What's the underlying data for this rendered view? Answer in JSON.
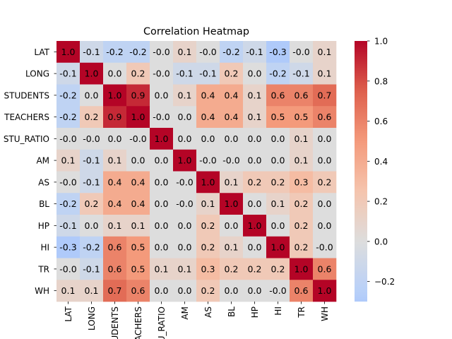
{
  "chart_data": {
    "type": "heatmap",
    "title": "Correlation Heatmap",
    "row_labels": [
      "LAT",
      "LONG",
      "STUDENTS",
      "TEACHERS",
      "STU_RATIO",
      "AM",
      "AS",
      "BL",
      "HP",
      "HI",
      "TR",
      "WH"
    ],
    "col_labels": [
      "LAT",
      "LONG",
      "STUDENTS",
      "TEACHERS",
      "STU_RATIO",
      "AM",
      "AS",
      "BL",
      "HP",
      "HI",
      "TR",
      "WH"
    ],
    "cell_labels": [
      [
        "1.0",
        "-0.1",
        "-0.2",
        "-0.2",
        "-0.0",
        "0.1",
        "-0.0",
        "-0.2",
        "-0.1",
        "-0.3",
        "-0.0",
        "0.1"
      ],
      [
        "-0.1",
        "1.0",
        "0.0",
        "0.2",
        "-0.0",
        "-0.1",
        "-0.1",
        "0.2",
        "0.0",
        "-0.2",
        "-0.1",
        "0.1"
      ],
      [
        "-0.2",
        "0.0",
        "1.0",
        "0.9",
        "0.0",
        "0.1",
        "0.4",
        "0.4",
        "0.1",
        "0.6",
        "0.6",
        "0.7"
      ],
      [
        "-0.2",
        "0.2",
        "0.9",
        "1.0",
        "-0.0",
        "0.0",
        "0.4",
        "0.4",
        "0.1",
        "0.5",
        "0.5",
        "0.6"
      ],
      [
        "-0.0",
        "-0.0",
        "0.0",
        "-0.0",
        "1.0",
        "0.0",
        "0.0",
        "0.0",
        "0.0",
        "0.0",
        "0.1",
        "0.0"
      ],
      [
        "0.1",
        "-0.1",
        "0.1",
        "0.0",
        "0.0",
        "1.0",
        "-0.0",
        "-0.0",
        "0.0",
        "0.0",
        "0.1",
        "0.0"
      ],
      [
        "-0.0",
        "-0.1",
        "0.4",
        "0.4",
        "0.0",
        "-0.0",
        "1.0",
        "0.1",
        "0.2",
        "0.2",
        "0.3",
        "0.2"
      ],
      [
        "-0.2",
        "0.2",
        "0.4",
        "0.4",
        "0.0",
        "-0.0",
        "0.1",
        "1.0",
        "0.0",
        "0.1",
        "0.2",
        "0.0"
      ],
      [
        "-0.1",
        "0.0",
        "0.1",
        "0.1",
        "0.0",
        "0.0",
        "0.2",
        "0.0",
        "1.0",
        "0.0",
        "0.2",
        "0.0"
      ],
      [
        "-0.3",
        "-0.2",
        "0.6",
        "0.5",
        "0.0",
        "0.0",
        "0.2",
        "0.1",
        "0.0",
        "1.0",
        "0.2",
        "-0.0"
      ],
      [
        "-0.0",
        "-0.1",
        "0.6",
        "0.5",
        "0.1",
        "0.1",
        "0.3",
        "0.2",
        "0.2",
        "0.2",
        "1.0",
        "0.6"
      ],
      [
        "0.1",
        "0.1",
        "0.7",
        "0.6",
        "0.0",
        "0.0",
        "0.2",
        "0.0",
        "0.0",
        "-0.0",
        "0.6",
        "1.0"
      ]
    ],
    "colormap": "coolwarm",
    "center": 0,
    "vmin": -0.3,
    "vmax": 1.0,
    "colorbar_ticks": [
      1.0,
      0.8,
      0.6,
      0.4,
      0.2,
      0.0,
      -0.2
    ],
    "colorbar_tick_labels": [
      "1.0",
      "0.8",
      "0.6",
      "0.4",
      "0.2",
      "0.0",
      "−0.2"
    ],
    "colors": {
      "low": "#3b4cc0",
      "mid": "#dddddd",
      "high": "#b40426"
    }
  }
}
